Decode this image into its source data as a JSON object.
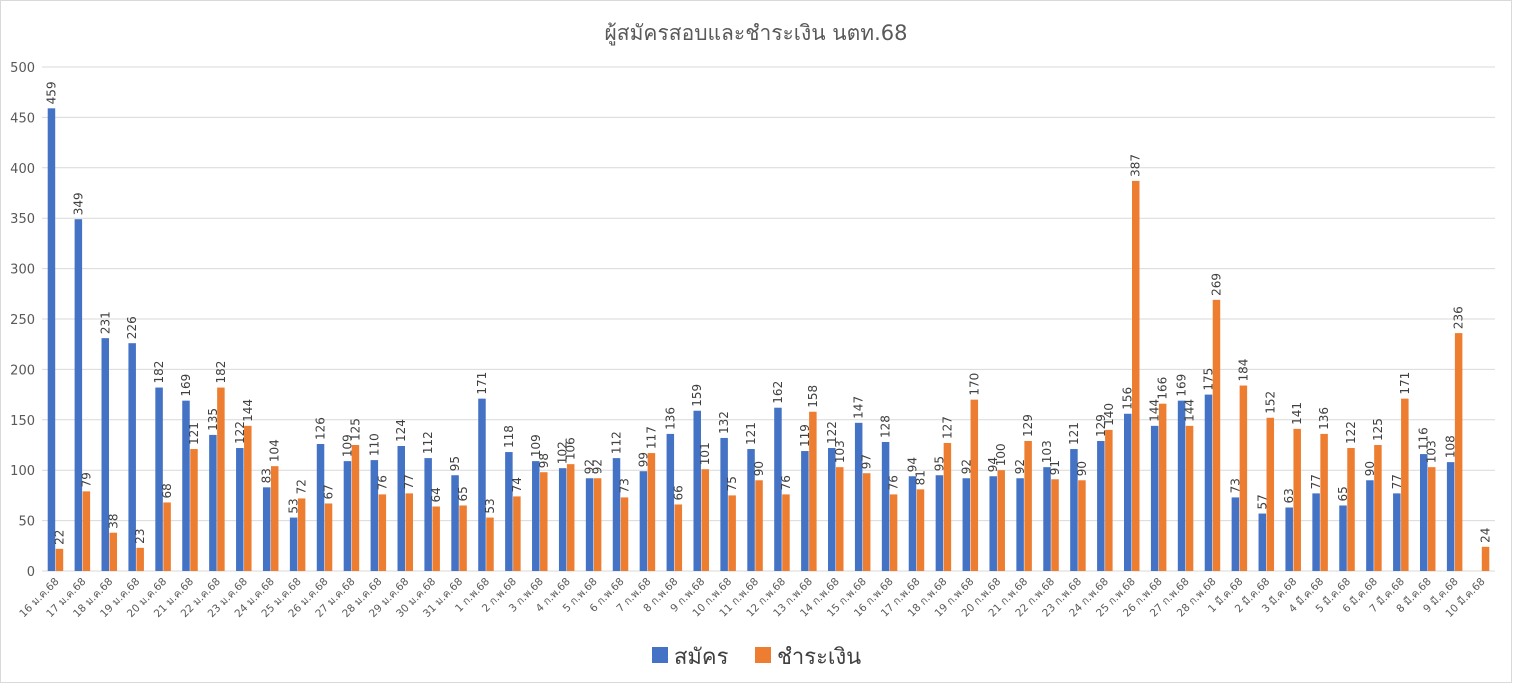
{
  "chart_data": {
    "type": "bar",
    "title": "ผู้สมัครสอบและชำระเงิน นตท.68",
    "ylim": [
      0,
      500
    ],
    "yticks": [
      0,
      50,
      100,
      150,
      200,
      250,
      300,
      350,
      400,
      450,
      500
    ],
    "grid": true,
    "legend_position": "bottom",
    "categories": [
      "16 ม.ค.68",
      "17 ม.ค.68",
      "18 ม.ค.68",
      "19 ม.ค.68",
      "20 ม.ค.68",
      "21 ม.ค.68",
      "22 ม.ค.68",
      "23 ม.ค.68",
      "24 ม.ค.68",
      "25 ม.ค.68",
      "26 ม.ค.68",
      "27 ม.ค.68",
      "28 ม.ค.68",
      "29 ม.ค.68",
      "30 ม.ค.68",
      "31 ม.ค.68",
      "1 ก.พ.68",
      "2 ก.พ.68",
      "3 ก.พ.68",
      "4 ก.พ.68",
      "5 ก.พ.68",
      "6 ก.พ.68",
      "7 ก.พ.68",
      "8 ก.พ.68",
      "9 ก.พ.68",
      "10 ก.พ.68",
      "11 ก.พ.68",
      "12 ก.พ.68",
      "13 ก.พ.68",
      "14 ก.พ.68",
      "15 ก.พ.68",
      "16 ก.พ.68",
      "17 ก.พ.68",
      "18 ก.พ.68",
      "19 ก.พ.68",
      "20 ก.พ.68",
      "21 ก.พ.68",
      "22 ก.พ.68",
      "23 ก.พ.68",
      "24 ก.พ.68",
      "25 ก.พ.68",
      "26 ก.พ.68",
      "27 ก.พ.68",
      "28 ก.พ.68",
      "1 มี.ค.68",
      "2 มี.ค.68",
      "3 มี.ค.68",
      "4 มี.ค.68",
      "5 มี.ค.68",
      "6 มี.ค.68",
      "7 มี.ค.68",
      "8 มี.ค.68",
      "9 มี.ค.68",
      "10 มี.ค.68"
    ],
    "series": [
      {
        "name": "สมัคร",
        "color": "#4472c4",
        "values": [
          459,
          349,
          231,
          226,
          182,
          169,
          135,
          122,
          83,
          53,
          126,
          109,
          110,
          124,
          112,
          95,
          171,
          118,
          109,
          102,
          92,
          112,
          99,
          136,
          159,
          132,
          121,
          162,
          119,
          122,
          147,
          128,
          94,
          95,
          92,
          94,
          92,
          103,
          121,
          129,
          156,
          144,
          169,
          175,
          73,
          57,
          63,
          77,
          65,
          90,
          77,
          116,
          108,
          null
        ]
      },
      {
        "name": "ชำระเงิน",
        "color": "#ed7d31",
        "values": [
          22,
          79,
          38,
          23,
          68,
          121,
          182,
          144,
          104,
          72,
          67,
          125,
          76,
          77,
          64,
          65,
          53,
          74,
          98,
          106,
          92,
          73,
          117,
          66,
          101,
          75,
          90,
          76,
          158,
          103,
          97,
          76,
          81,
          127,
          170,
          100,
          129,
          91,
          90,
          140,
          387,
          166,
          144,
          269,
          184,
          152,
          141,
          136,
          122,
          125,
          171,
          103,
          236,
          24
        ]
      }
    ]
  }
}
